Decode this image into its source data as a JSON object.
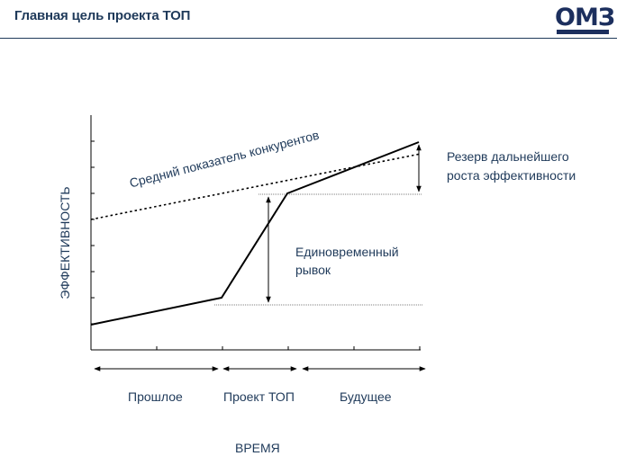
{
  "header": {
    "title": "Главная цель проекта ТОП",
    "logo_text": "ОМЗ"
  },
  "diagram": {
    "y_axis_label": "ЭФФЕКТИВНОСТЬ",
    "x_axis_label": "ВРЕМЯ",
    "competitors_label": "Средний показатель конкурентов",
    "jump_label_line1": "Единовременный",
    "jump_label_line2": "рывок",
    "reserve_label_line1": "Резерв дальнейшего",
    "reserve_label_line2": "роста эффективности",
    "periods": [
      "Прошлое",
      "Проект  ТОП",
      "Будущее"
    ]
  },
  "colors": {
    "text": "#1f3a5a",
    "lines": "#000000",
    "logo": "#1c2f5e"
  }
}
